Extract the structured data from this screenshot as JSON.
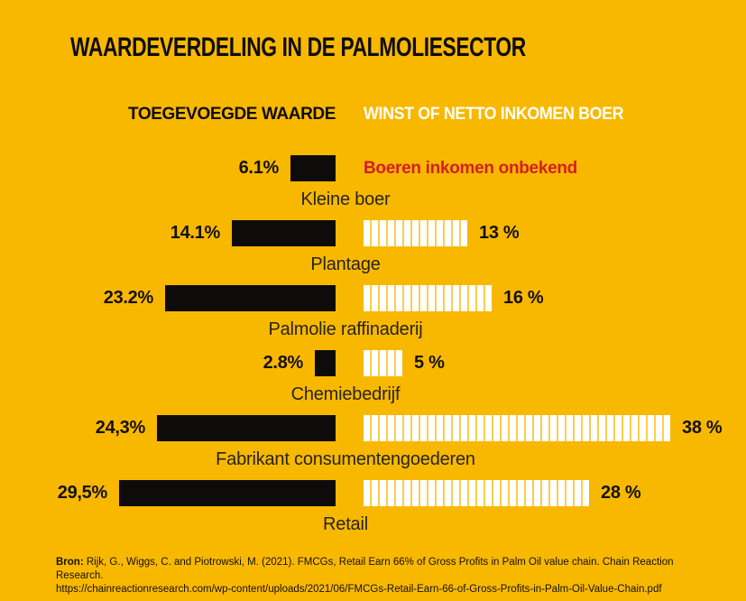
{
  "title": "WAARDEVERDELING IN DE PALMOLIESECTOR",
  "columns": {
    "left": "TOEGEVOEGDE WAARDE",
    "right": "WINST OF NETTO INKOMEN BOER"
  },
  "chart_data": {
    "type": "bar",
    "title": "WAARDEVERDELING IN DE PALMOLIESECTOR",
    "unit": "%",
    "orientation": "horizontal",
    "categories": [
      "Kleine boer",
      "Plantage",
      "Palmolie raffinaderij",
      "Chemiebedrijf",
      "Fabrikant consumentengoederen",
      "Retail"
    ],
    "series": [
      {
        "name": "TOEGEVOEGDE WAARDE",
        "values": [
          6.1,
          14.1,
          23.2,
          2.8,
          24.3,
          29.5
        ],
        "labels": [
          "6.1%",
          "14.1%",
          "23.2%",
          "2.8%",
          "24,3%",
          "29,5%"
        ],
        "color": "#0d0c0a",
        "style": "solid",
        "align": "right-to-center"
      },
      {
        "name": "WINST OF NETTO INKOMEN BOER",
        "values": [
          null,
          13,
          16,
          5,
          38,
          28
        ],
        "labels": [
          null,
          "13 %",
          "16 %",
          "5 %",
          "38 %",
          "28 %"
        ],
        "color": "#ffffff",
        "style": "striped-one-stripe-per-percent",
        "align": "left-from-center"
      }
    ],
    "annotation": {
      "row": "Kleine boer",
      "text": "Boeren inkomen onbekend",
      "color": "#d41f23"
    },
    "legend_position": "column-headers-above-chart",
    "grid": false
  },
  "annotation_text": "Boeren inkomen onbekend",
  "source": {
    "label": "Bron:",
    "line1": "Rijk, G., Wiggs, C. and Piotrowski, M. (2021). FMCGs, Retail Earn 66% of Gross Profits in Palm Oil value chain. Chain Reaction Research.",
    "line2": "https://chainreactionresearch.com/wp-content/uploads/2021/06/FMCGs-Retail-Earn-66-of-Gross-Profits-in-Palm-Oil-Value-Chain.pdf"
  },
  "colors": {
    "background": "#f9b800",
    "bar_left": "#0d0c0a",
    "bar_right": "#ffffff",
    "annotation_red": "#d41f23",
    "header_right_text": "#ffffff",
    "text": "#14110b"
  }
}
